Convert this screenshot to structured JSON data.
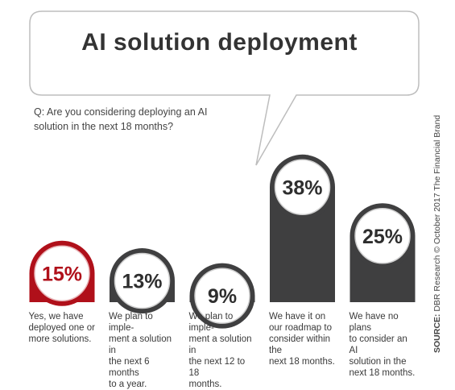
{
  "title": "AI solution deployment",
  "question": "Q: Are you considering deploying an AI solution in the next 18 months?",
  "source_label": "SOURCE:",
  "source_text": "DBR Research © October 2017 The Financial Brand",
  "colors": {
    "highlight": "#b0101a",
    "bar": "#3f3f40",
    "text": "#333333",
    "bubble_stroke": "#bdbdbd"
  },
  "chart_data": {
    "type": "bar",
    "title": "AI solution deployment",
    "xlabel": "",
    "ylabel": "",
    "categories": [
      "Yes, we have deployed one or more solutions.",
      "We plan to implement a solution in the next 6 months to a year.",
      "We plan to implement a solution in the next 12 to 18 months.",
      "We have it on our roadmap to consider within the next 18 months.",
      "We have no plans to consider an AI solution in the next 18 months."
    ],
    "values": [
      15,
      13,
      9,
      38,
      25
    ],
    "value_labels": [
      "15%",
      "13%",
      "9%",
      "38%",
      "25%"
    ],
    "highlight_index": 0,
    "unit": "%"
  },
  "category_lines": [
    [
      "Yes, we have",
      "deployed one or",
      "more solutions."
    ],
    [
      "We plan to imple-",
      "ment a solution in",
      "the next 6 months",
      "to a year."
    ],
    [
      "We plan to imple-",
      "ment a solution in",
      "the next 12 to 18",
      "months."
    ],
    [
      "We have it on",
      "our roadmap to",
      "consider within the",
      "next 18 months."
    ],
    [
      "We have no plans",
      "to consider an AI",
      "solution in the",
      "next 18 months."
    ]
  ]
}
